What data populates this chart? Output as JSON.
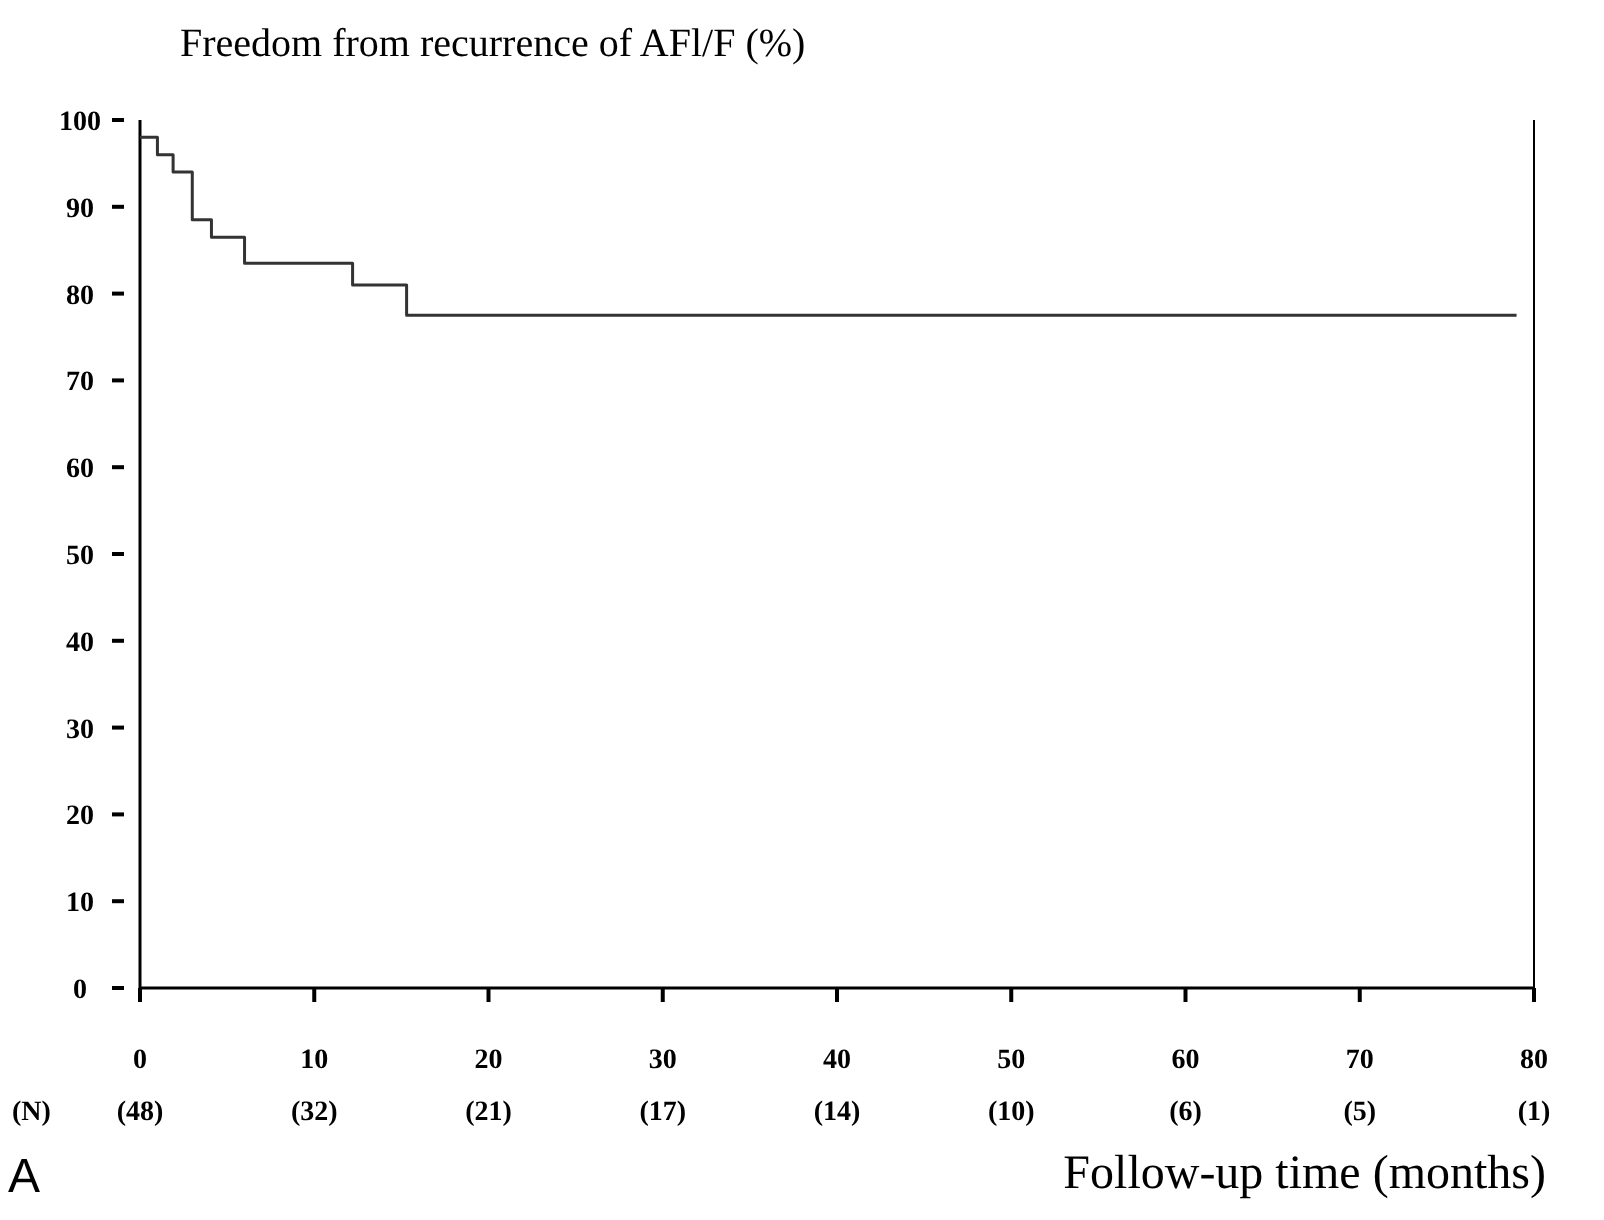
{
  "chart_data": {
    "type": "step",
    "title": "Freedom from recurrence of AFl/F (%)",
    "xlabel": "Follow-up time (months)",
    "x": [
      0,
      1,
      1.9,
      3,
      4.1,
      6,
      12.2,
      15.3,
      79
    ],
    "series": [
      {
        "color": "#333333",
        "values": [
          98,
          96,
          94,
          88.5,
          86.5,
          83.5,
          81,
          77.5,
          77.5
        ]
      }
    ],
    "xlim": [
      0,
      80
    ],
    "xticks": [
      0,
      10,
      20,
      30,
      40,
      50,
      60,
      70,
      80
    ],
    "ylim": [
      0,
      100
    ],
    "yticks": [
      0,
      10,
      20,
      30,
      40,
      50,
      60,
      70,
      80,
      90,
      100
    ],
    "grid": false,
    "marker": "none",
    "line_style": "solid",
    "annotations": [
      "(N)",
      "(48)",
      "(32)",
      "(21)",
      "(17)",
      "(14)",
      "(10)",
      "(6)",
      "(5)",
      "(1)",
      "A"
    ]
  }
}
